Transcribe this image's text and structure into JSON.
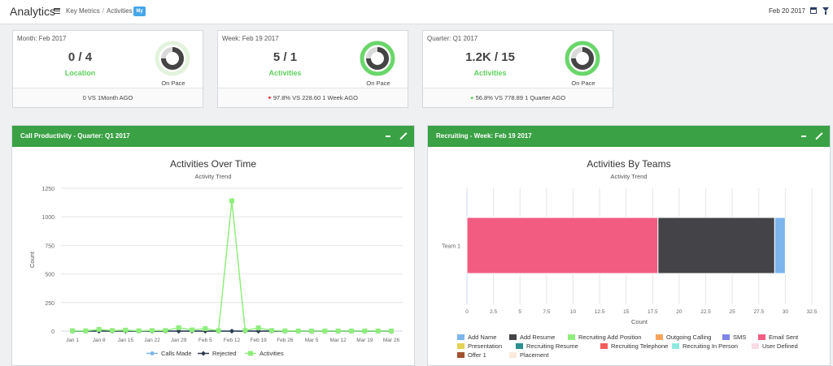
{
  "header": {
    "title": "Analytics",
    "breadcrumb": [
      "Key Metrics",
      "/",
      "Activities"
    ],
    "badge": "My",
    "date": "Feb 20 2017",
    "icons": [
      "list-icon",
      "calendar-icon",
      "filter-icon"
    ]
  },
  "kpis": [
    {
      "period": "Month: Feb 2017",
      "value": "0 / 4",
      "label": "Location",
      "pace": "On Pace",
      "footer": "0 VS 1Month AGO",
      "trend": "",
      "ring_progress": 0,
      "ring_color": "#e3f3dd"
    },
    {
      "period": "Week: Feb 19 2017",
      "value": "5 / 1",
      "label": "Activities",
      "pace": "On Pace",
      "footer": "97.8% VS 228.60 1 Week AGO",
      "trend": "down",
      "ring_progress": 1,
      "ring_color": "#6ad66a"
    },
    {
      "period": "Quarter: Q1 2017",
      "value": "1.2K / 15",
      "label": "Activities",
      "pace": "On Pace",
      "footer": "56.8% VS 778.89 1 Quarter AGO",
      "trend": "up",
      "ring_progress": 1,
      "ring_color": "#6ad66a"
    }
  ],
  "panels": {
    "left": {
      "header": "Call Productivity - Quarter: Q1 2017",
      "title": "Activities Over Time",
      "subtitle": "Activity Trend"
    },
    "right": {
      "header": "Recruiting - Week: Feb 19 2017",
      "title": "Activities By Teams",
      "subtitle": "Activity Trend"
    }
  },
  "chart_data": [
    {
      "type": "line",
      "title": "Activities Over Time",
      "subtitle": "Activity Trend",
      "ylabel": "Count",
      "xlabel": "",
      "ylim": [
        0,
        1250
      ],
      "yticks": [
        0,
        250,
        500,
        750,
        1000,
        1250
      ],
      "categories": [
        "Jan 1",
        "Jan 5",
        "Jan 8",
        "Jan 12",
        "Jan 15",
        "Jan 19",
        "Jan 22",
        "Jan 26",
        "Jan 29",
        "Feb 2",
        "Feb 5",
        "Feb 9",
        "Feb 12",
        "Feb 16",
        "Feb 19",
        "Feb 23",
        "Feb 26",
        "Mar 2",
        "Mar 5",
        "Mar 9",
        "Mar 12",
        "Mar 16",
        "Mar 19",
        "Mar 23",
        "Mar 26"
      ],
      "tick_labels": [
        "Jan 1",
        "Jan 8",
        "Jan 15",
        "Jan 22",
        "Jan 29",
        "Feb 5",
        "Feb 12",
        "Feb 19",
        "Feb 26",
        "Mar 5",
        "Mar 12",
        "Mar 19",
        "Mar 26"
      ],
      "grid": true,
      "legend_position": "bottom",
      "series": [
        {
          "name": "Calls Made",
          "color": "#7cb5ec",
          "marker": "circle",
          "values": [
            0,
            0,
            0,
            0,
            0,
            0,
            0,
            0,
            0,
            0,
            0,
            0,
            0,
            0,
            0,
            0,
            0,
            0,
            0,
            0,
            0,
            0,
            0,
            0,
            0
          ]
        },
        {
          "name": "Rejected",
          "color": "#2f3b4c",
          "marker": "diamond",
          "values": [
            0,
            0,
            0,
            0,
            0,
            0,
            0,
            0,
            0,
            0,
            0,
            0,
            0,
            0,
            0,
            0,
            0,
            0,
            0,
            0,
            0,
            0,
            0,
            0,
            0
          ]
        },
        {
          "name": "Activities",
          "color": "#90ed7d",
          "marker": "square",
          "values": [
            3,
            2,
            15,
            5,
            8,
            3,
            5,
            5,
            30,
            10,
            22,
            4,
            1140,
            5,
            28,
            5,
            2,
            1,
            1,
            1,
            1,
            1,
            1,
            1,
            1
          ]
        }
      ]
    },
    {
      "type": "bar",
      "orientation": "horizontal",
      "stacked": true,
      "title": "Activities By Teams",
      "subtitle": "Activity Trend",
      "xlabel": "Count",
      "ylabel": "",
      "xlim": [
        0,
        32.5
      ],
      "xticks": [
        0,
        2.5,
        5,
        7.5,
        10,
        12.5,
        15,
        17.5,
        20,
        22.5,
        25,
        27.5,
        30,
        32.5
      ],
      "categories": [
        "Team 1"
      ],
      "grid": true,
      "legend_position": "bottom",
      "series": [
        {
          "name": "Add Name",
          "color": "#7cb5ec",
          "values": [
            1
          ]
        },
        {
          "name": "Add Resume",
          "color": "#434348",
          "values": [
            11
          ]
        },
        {
          "name": "Recruiting Add Position",
          "color": "#90ed7d",
          "values": [
            0
          ]
        },
        {
          "name": "Outgoing Calling",
          "color": "#f7a35c",
          "values": [
            0
          ]
        },
        {
          "name": "SMS",
          "color": "#8085e9",
          "values": [
            0
          ]
        },
        {
          "name": "Email Sent",
          "color": "#f15c80",
          "values": [
            18
          ]
        },
        {
          "name": "Presentation",
          "color": "#e4d354",
          "values": [
            0
          ]
        },
        {
          "name": "Recruiting Resume",
          "color": "#2b908f",
          "values": [
            0
          ]
        },
        {
          "name": "Recruiting Telephone",
          "color": "#f45b5b",
          "values": [
            0
          ]
        },
        {
          "name": "Recruiting In Person",
          "color": "#91e8e1",
          "values": [
            0
          ]
        },
        {
          "name": "User Defined",
          "color": "#f9dce6",
          "values": [
            0
          ]
        },
        {
          "name": "Offer 1",
          "color": "#a0522d",
          "values": [
            0
          ]
        },
        {
          "name": "Placement",
          "color": "#fde9dc",
          "values": [
            0
          ]
        }
      ],
      "stack_order": [
        "Email Sent",
        "Add Resume",
        "Add Name"
      ]
    }
  ]
}
